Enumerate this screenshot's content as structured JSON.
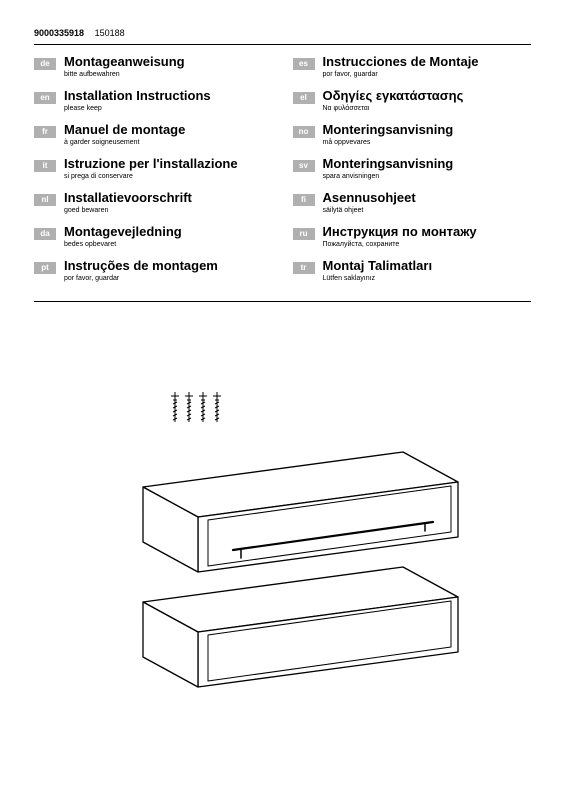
{
  "header": {
    "code1": "9000335918",
    "code2": "150188"
  },
  "columns": {
    "left": [
      {
        "code": "de",
        "title": "Montageanweisung",
        "sub": "bitte aufbewahren"
      },
      {
        "code": "en",
        "title": "Installation Instructions",
        "sub": "please keep"
      },
      {
        "code": "fr",
        "title": "Manuel de montage",
        "sub": "à garder soigneusement"
      },
      {
        "code": "it",
        "title": "Istruzione per l'installazione",
        "sub": "si prega di conservare"
      },
      {
        "code": "nl",
        "title": "Installatievoorschrift",
        "sub": "goed bewaren"
      },
      {
        "code": "da",
        "title": "Montagevejledning",
        "sub": "bedes opbevaret"
      },
      {
        "code": "pt",
        "title": "Instruções de montagem",
        "sub": "por favor, guardar"
      }
    ],
    "right": [
      {
        "code": "es",
        "title": "Instrucciones de Montaje",
        "sub": "por favor, guardar"
      },
      {
        "code": "el",
        "title": "Οδηγίες εγκατάστασης",
        "sub": "Να φυλάσσεται"
      },
      {
        "code": "no",
        "title": "Monteringsanvisning",
        "sub": "må oppvevares"
      },
      {
        "code": "sv",
        "title": "Monteringsanvisning",
        "sub": "spara anvisningen"
      },
      {
        "code": "fi",
        "title": "Asennusohjeet",
        "sub": "säilytä ohjeet"
      },
      {
        "code": "ru",
        "title": "Инструкция по монтажу",
        "sub": "Пожалуйста, сохраните"
      },
      {
        "code": "tr",
        "title": "Montaj Talimatları",
        "sub": "Lütfen saklayınız"
      }
    ]
  },
  "diagram": {
    "type": "infographic",
    "description": "Installation diagram: four screws above two stacked drawer units (one with handle)",
    "stroke_color": "#000000",
    "stroke_width": 1.2,
    "background_color": "#ffffff",
    "screw_count": 4,
    "drawer_count": 2
  },
  "styling": {
    "page_bg": "#ffffff",
    "text_color": "#000000",
    "lang_badge_bg": "#b0b0b0",
    "lang_badge_fg": "#ffffff",
    "title_fontsize": 13,
    "sub_fontsize": 7,
    "code_fontsize": 8
  }
}
